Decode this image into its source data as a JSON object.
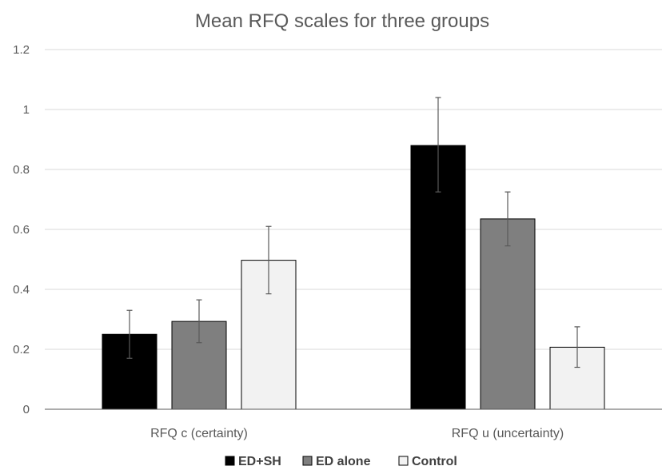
{
  "chart_data": {
    "type": "bar",
    "title": "Mean RFQ scales for three groups",
    "xlabel": "",
    "ylabel": "",
    "categories": [
      "RFQ c (certainty)",
      "RFQ u (uncertainty)"
    ],
    "ylim": [
      0,
      1.2
    ],
    "yticks": [
      0,
      0.2,
      0.4,
      0.6,
      0.8,
      1,
      1.2
    ],
    "grid": true,
    "legend_position": "bottom",
    "series": [
      {
        "name": "ED+SH",
        "color": "#000000",
        "values": [
          0.25,
          0.88
        ],
        "err_low": [
          0.17,
          0.725
        ],
        "err_high": [
          0.33,
          1.04
        ]
      },
      {
        "name": "ED alone",
        "color": "#7f7f7f",
        "values": [
          0.293,
          0.635
        ],
        "err_low": [
          0.222,
          0.545
        ],
        "err_high": [
          0.365,
          0.725
        ]
      },
      {
        "name": "Control",
        "color": "#f2f2f2",
        "values": [
          0.497,
          0.207
        ],
        "err_low": [
          0.385,
          0.14
        ],
        "err_high": [
          0.61,
          0.275
        ]
      }
    ]
  }
}
